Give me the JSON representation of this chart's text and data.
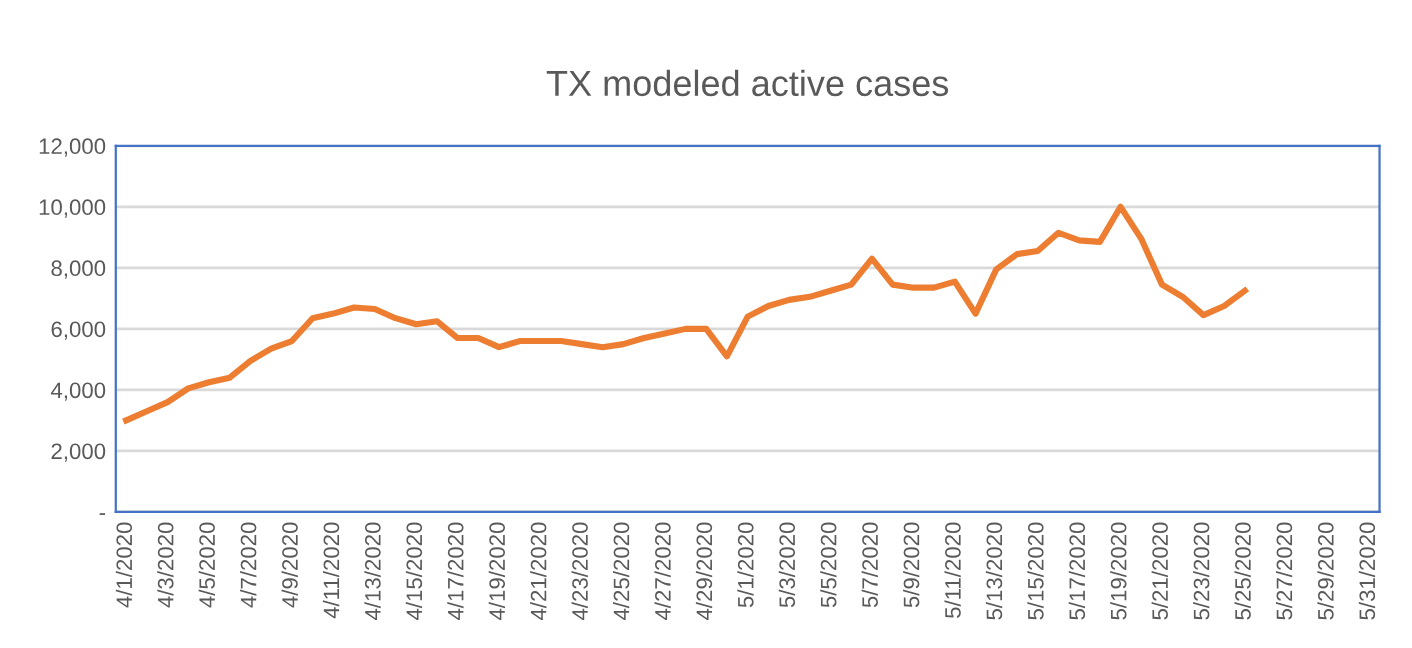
{
  "chart_data": {
    "type": "line",
    "title": "TX modeled active cases",
    "x": [
      "2020-04-01",
      "2020-04-02",
      "2020-04-03",
      "2020-04-04",
      "2020-04-05",
      "2020-04-06",
      "2020-04-07",
      "2020-04-08",
      "2020-04-09",
      "2020-04-10",
      "2020-04-11",
      "2020-04-12",
      "2020-04-13",
      "2020-04-14",
      "2020-04-15",
      "2020-04-16",
      "2020-04-17",
      "2020-04-18",
      "2020-04-19",
      "2020-04-20",
      "2020-04-21",
      "2020-04-22",
      "2020-04-23",
      "2020-04-24",
      "2020-04-25",
      "2020-04-26",
      "2020-04-27",
      "2020-04-28",
      "2020-04-29",
      "2020-04-30",
      "2020-05-01",
      "2020-05-02",
      "2020-05-03",
      "2020-05-04",
      "2020-05-05",
      "2020-05-06",
      "2020-05-07",
      "2020-05-08",
      "2020-05-09",
      "2020-05-10",
      "2020-05-11",
      "2020-05-12",
      "2020-05-13",
      "2020-05-14",
      "2020-05-15",
      "2020-05-16",
      "2020-05-17",
      "2020-05-18",
      "2020-05-19",
      "2020-05-20",
      "2020-05-21",
      "2020-05-22",
      "2020-05-23",
      "2020-05-24",
      "2020-05-25"
    ],
    "series": [
      {
        "color": "#ed7d31",
        "values": [
          3000,
          3300,
          3600,
          4050,
          4250,
          4400,
          4950,
          5350,
          5600,
          6350,
          6500,
          6700,
          6650,
          6350,
          6150,
          6250,
          5700,
          5700,
          5400,
          5600,
          5600,
          5600,
          5500,
          5400,
          5500,
          5700,
          5850,
          6000,
          6000,
          5100,
          6400,
          6750,
          6950,
          7050,
          7250,
          7450,
          8300,
          7450,
          7350,
          7350,
          7550,
          6500,
          7950,
          8450,
          8550,
          9150,
          8900,
          8850,
          10000,
          8950,
          7450,
          7050,
          6450,
          6750,
          7250
        ]
      }
    ],
    "xlim": [
      "2020-03-31T12:00",
      "2020-05-31T12:00"
    ],
    "xticks": [
      {
        "value": "2020-04-01",
        "label": "4/1/2020"
      },
      {
        "value": "2020-04-03",
        "label": "4/3/2020"
      },
      {
        "value": "2020-04-05",
        "label": "4/5/2020"
      },
      {
        "value": "2020-04-07",
        "label": "4/7/2020"
      },
      {
        "value": "2020-04-09",
        "label": "4/9/2020"
      },
      {
        "value": "2020-04-11",
        "label": "4/11/2020"
      },
      {
        "value": "2020-04-13",
        "label": "4/13/2020"
      },
      {
        "value": "2020-04-15",
        "label": "4/15/2020"
      },
      {
        "value": "2020-04-17",
        "label": "4/17/2020"
      },
      {
        "value": "2020-04-19",
        "label": "4/19/2020"
      },
      {
        "value": "2020-04-21",
        "label": "4/21/2020"
      },
      {
        "value": "2020-04-23",
        "label": "4/23/2020"
      },
      {
        "value": "2020-04-25",
        "label": "4/25/2020"
      },
      {
        "value": "2020-04-27",
        "label": "4/27/2020"
      },
      {
        "value": "2020-04-29",
        "label": "4/29/2020"
      },
      {
        "value": "2020-05-01",
        "label": "5/1/2020"
      },
      {
        "value": "2020-05-03",
        "label": "5/3/2020"
      },
      {
        "value": "2020-05-05",
        "label": "5/5/2020"
      },
      {
        "value": "2020-05-07",
        "label": "5/7/2020"
      },
      {
        "value": "2020-05-09",
        "label": "5/9/2020"
      },
      {
        "value": "2020-05-11",
        "label": "5/11/2020"
      },
      {
        "value": "2020-05-13",
        "label": "5/13/2020"
      },
      {
        "value": "2020-05-15",
        "label": "5/15/2020"
      },
      {
        "value": "2020-05-17",
        "label": "5/17/2020"
      },
      {
        "value": "2020-05-19",
        "label": "5/19/2020"
      },
      {
        "value": "2020-05-21",
        "label": "5/21/2020"
      },
      {
        "value": "2020-05-23",
        "label": "5/23/2020"
      },
      {
        "value": "2020-05-25",
        "label": "5/25/2020"
      },
      {
        "value": "2020-05-27",
        "label": "5/27/2020"
      },
      {
        "value": "2020-05-29",
        "label": "5/29/2020"
      },
      {
        "value": "2020-05-31",
        "label": "5/31/2020"
      }
    ],
    "ylim": [
      0,
      12000
    ],
    "yticks": [
      {
        "value": 0,
        "label": "-"
      },
      {
        "value": 2000,
        "label": "2,000"
      },
      {
        "value": 4000,
        "label": "4,000"
      },
      {
        "value": 6000,
        "label": "6,000"
      },
      {
        "value": 8000,
        "label": "8,000"
      },
      {
        "value": 10000,
        "label": "10,000"
      },
      {
        "value": 12000,
        "label": "12,000"
      }
    ],
    "grid": "y",
    "legend": false,
    "marker": "none",
    "line_style": "solid"
  }
}
